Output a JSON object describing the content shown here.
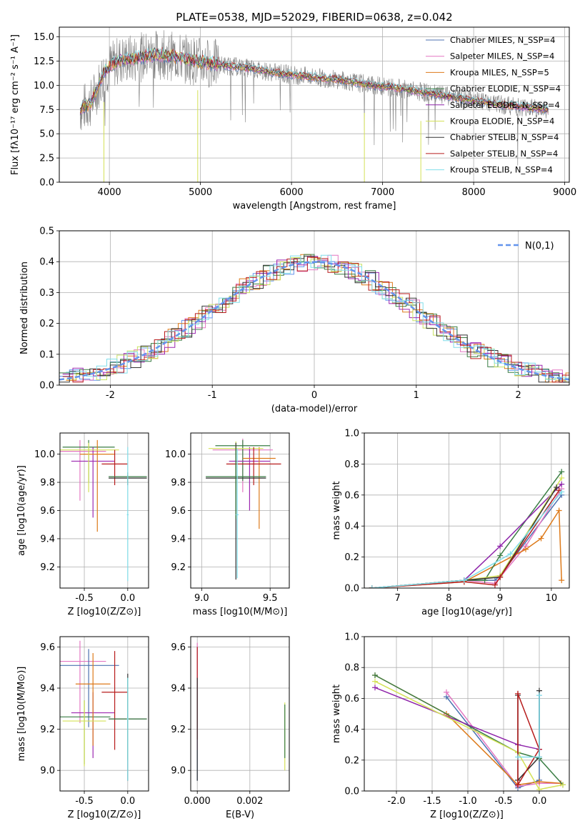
{
  "figure_title": "PLATE=0538, MJD=52029, FIBERID=0638, z=0.042",
  "chart_data": [
    {
      "id": "spectrum",
      "type": "line",
      "title": "PLATE=0538, MJD=52029, FIBERID=0638, z=0.042",
      "xlabel": "wavelength [Angstrom, rest frame]",
      "ylabel": "Flux [fλ10⁻¹⁷ erg cm⁻² s⁻¹ A⁻¹]",
      "xlim": [
        3450,
        9050
      ],
      "ylim": [
        0,
        16
      ],
      "xticks": [
        4000,
        5000,
        6000,
        7000,
        8000,
        9000
      ],
      "yticks": [
        0.0,
        2.5,
        5.0,
        7.5,
        10.0,
        12.5,
        15.0
      ],
      "legend_position": "top-right",
      "observed_continuum": [
        [
          3680,
          7.5
        ],
        [
          3800,
          8.2
        ],
        [
          3950,
          11.5
        ],
        [
          4100,
          12.6
        ],
        [
          4300,
          12.8
        ],
        [
          4500,
          13.2
        ],
        [
          4700,
          13.0
        ],
        [
          4900,
          12.6
        ],
        [
          5100,
          12.3
        ],
        [
          5300,
          12.0
        ],
        [
          5500,
          11.8
        ],
        [
          5700,
          11.5
        ],
        [
          5900,
          11.2
        ],
        [
          6100,
          11.0
        ],
        [
          6300,
          10.8
        ],
        [
          6500,
          10.6
        ],
        [
          6700,
          10.3
        ],
        [
          6900,
          10.0
        ],
        [
          7100,
          9.8
        ],
        [
          7300,
          9.5
        ],
        [
          7500,
          9.2
        ],
        [
          7700,
          8.9
        ],
        [
          7900,
          8.6
        ],
        [
          8100,
          8.3
        ],
        [
          8300,
          8.0
        ],
        [
          8500,
          7.8
        ],
        [
          8700,
          7.6
        ],
        [
          8820,
          7.5
        ]
      ],
      "series": [
        {
          "name": "Chabrier MILES, N_SSP=4",
          "color": "#4c72b0"
        },
        {
          "name": "Salpeter MILES, N_SSP=4",
          "color": "#e377c2"
        },
        {
          "name": "Kroupa MILES, N_SSP=5",
          "color": "#dd7a1a"
        },
        {
          "name": "Chabrier ELODIE, N_SSP=4",
          "color": "#3a7d44"
        },
        {
          "name": "Salpeter ELODIE, N_SSP=4",
          "color": "#8e24aa"
        },
        {
          "name": "Kroupa ELODIE, N_SSP=4",
          "color": "#d4e157"
        },
        {
          "name": "Chabrier STELIB, N_SSP=4",
          "color": "#333333"
        },
        {
          "name": "Salpeter STELIB, N_SSP=4",
          "color": "#b71c1c"
        },
        {
          "name": "Kroupa STELIB, N_SSP=4",
          "color": "#80deea"
        }
      ]
    },
    {
      "id": "residuals",
      "type": "histogram",
      "xlabel": "(data-model)/error",
      "ylabel": "Normed distribution",
      "xlim": [
        -2.5,
        2.5
      ],
      "ylim": [
        0,
        0.5
      ],
      "xticks": [
        -2,
        -1,
        0,
        1,
        2
      ],
      "yticks": [
        0.0,
        0.1,
        0.2,
        0.3,
        0.4,
        0.5
      ],
      "bin_width": 0.1,
      "reference_curve": {
        "name": "N(0,1)",
        "color": "#6495ed"
      },
      "legend_position": "top-right",
      "series_colors": [
        "#6495ed",
        "#e377c2",
        "#dd7a1a",
        "#3a7d44",
        "#9c27b0",
        "#c9e265",
        "#333333",
        "#b71c1c",
        "#80deea"
      ]
    },
    {
      "id": "age_vs_Z",
      "type": "errorbar",
      "xlabel": "Z [log10(Z/Z⊙)]",
      "ylabel": "age  [log10(age/yr)]",
      "xlim": [
        -0.78,
        0.24
      ],
      "ylim": [
        9.05,
        10.15
      ],
      "xticks": [
        -0.5,
        0.0
      ],
      "yticks": [
        9.2,
        9.4,
        9.6,
        9.8,
        10.0
      ],
      "points": [
        {
          "x": -0.55,
          "xerr": 0.3,
          "y": 10.02,
          "yerr_lo": 0.35,
          "yerr_hi": 0.08,
          "color": "#e377c2"
        },
        {
          "x": -0.45,
          "xerr": 0.3,
          "y": 10.05,
          "yerr_lo": 0.25,
          "yerr_hi": 0.05,
          "color": "#3a7d44"
        },
        {
          "x": -0.4,
          "xerr": 0.25,
          "y": 9.95,
          "yerr_lo": 0.4,
          "yerr_hi": 0.1,
          "color": "#9c27b0"
        },
        {
          "x": -0.35,
          "xerr": 0.2,
          "y": 10.0,
          "yerr_lo": 0.55,
          "yerr_hi": 0.1,
          "color": "#dd7a1a"
        },
        {
          "x": -0.45,
          "xerr": 0.35,
          "y": 10.03,
          "yerr_lo": 0.3,
          "yerr_hi": 0.05,
          "color": "#d4e157"
        },
        {
          "x": -0.15,
          "xerr": 0.15,
          "y": 9.93,
          "yerr_lo": 0.15,
          "yerr_hi": 0.1,
          "color": "#b71c1c"
        },
        {
          "x": 0.0,
          "xerr": 0.22,
          "y": 9.83,
          "yerr_lo": 0.05,
          "yerr_hi": 0.02,
          "color": "#333333"
        },
        {
          "x": 0.0,
          "xerr": 0.22,
          "y": 9.84,
          "yerr_lo": 0.04,
          "yerr_hi": 0.03,
          "color": "#3a7d44"
        },
        {
          "x": 0.0,
          "xerr": 0.01,
          "y": 9.57,
          "yerr_lo": 0.47,
          "yerr_hi": 0.48,
          "color": "#80deea"
        }
      ]
    },
    {
      "id": "age_vs_mass",
      "type": "errorbar",
      "xlabel": "mass [log10(M/M⊙)]",
      "ylabel": "",
      "xlim": [
        8.92,
        9.64
      ],
      "ylim": [
        9.05,
        10.15
      ],
      "xticks": [
        9.0,
        9.5
      ],
      "yticks": [
        9.2,
        9.4,
        9.6,
        9.8,
        10.0
      ],
      "points": [
        {
          "x": 9.3,
          "xerr": 0.22,
          "y": 10.03,
          "yerr_lo": 0.3,
          "yerr_hi": 0.08,
          "color": "#e377c2"
        },
        {
          "x": 9.3,
          "xerr": 0.2,
          "y": 10.06,
          "yerr_lo": 0.25,
          "yerr_hi": 0.04,
          "color": "#3a7d44"
        },
        {
          "x": 9.35,
          "xerr": 0.15,
          "y": 9.95,
          "yerr_lo": 0.35,
          "yerr_hi": 0.1,
          "color": "#9c27b0"
        },
        {
          "x": 9.42,
          "xerr": 0.12,
          "y": 9.97,
          "yerr_lo": 0.5,
          "yerr_hi": 0.08,
          "color": "#dd7a1a"
        },
        {
          "x": 9.25,
          "xerr": 0.2,
          "y": 10.04,
          "yerr_lo": 0.32,
          "yerr_hi": 0.05,
          "color": "#d4e157"
        },
        {
          "x": 9.38,
          "xerr": 0.2,
          "y": 9.93,
          "yerr_lo": 0.15,
          "yerr_hi": 0.12,
          "color": "#b71c1c"
        },
        {
          "x": 9.25,
          "xerr": 0.22,
          "y": 9.83,
          "yerr_lo": 0.72,
          "yerr_hi": 0.25,
          "color": "#333333"
        },
        {
          "x": 9.25,
          "xerr": 0.22,
          "y": 9.84,
          "yerr_lo": 0.3,
          "yerr_hi": 0.2,
          "color": "#3a7d44"
        },
        {
          "x": 9.26,
          "xerr": 0.01,
          "y": 9.57,
          "yerr_lo": 0.45,
          "yerr_hi": 0.47,
          "color": "#80deea"
        }
      ]
    },
    {
      "id": "weight_vs_age",
      "type": "line",
      "xlabel": "age  [log10(age/yr)]",
      "ylabel": "mass weight",
      "xlim": [
        6.35,
        10.35
      ],
      "ylim": [
        0,
        1
      ],
      "xticks": [
        7,
        8,
        9,
        10
      ],
      "yticks": [
        0.0,
        0.2,
        0.4,
        0.6,
        0.8,
        1.0
      ],
      "series": [
        {
          "color": "#4c72b0",
          "points": [
            [
              6.5,
              0.0
            ],
            [
              8.3,
              0.05
            ],
            [
              8.9,
              0.05
            ],
            [
              9.0,
              0.08
            ],
            [
              10.2,
              0.6
            ]
          ]
        },
        {
          "color": "#e377c2",
          "points": [
            [
              6.5,
              0.0
            ],
            [
              8.3,
              0.05
            ],
            [
              8.9,
              0.03
            ],
            [
              9.5,
              0.27
            ],
            [
              10.2,
              0.64
            ]
          ]
        },
        {
          "color": "#dd7a1a",
          "points": [
            [
              6.5,
              0.0
            ],
            [
              8.3,
              0.04
            ],
            [
              9.5,
              0.25
            ],
            [
              9.8,
              0.32
            ],
            [
              10.15,
              0.5
            ],
            [
              10.2,
              0.05
            ]
          ]
        },
        {
          "color": "#3a7d44",
          "points": [
            [
              6.5,
              0.0
            ],
            [
              8.3,
              0.05
            ],
            [
              8.7,
              0.05
            ],
            [
              9.0,
              0.21
            ],
            [
              10.2,
              0.75
            ]
          ]
        },
        {
          "color": "#8e24aa",
          "points": [
            [
              6.5,
              0.0
            ],
            [
              8.3,
              0.05
            ],
            [
              9.0,
              0.27
            ],
            [
              10.2,
              0.67
            ]
          ]
        },
        {
          "color": "#d4e157",
          "points": [
            [
              6.5,
              0.0
            ],
            [
              8.3,
              0.05
            ],
            [
              9.0,
              0.08
            ],
            [
              10.2,
              0.71
            ]
          ]
        },
        {
          "color": "#333333",
          "points": [
            [
              6.5,
              0.0
            ],
            [
              8.3,
              0.05
            ],
            [
              9.0,
              0.07
            ],
            [
              10.1,
              0.65
            ]
          ]
        },
        {
          "color": "#b71c1c",
          "points": [
            [
              6.5,
              0.0
            ],
            [
              8.3,
              0.04
            ],
            [
              8.9,
              0.02
            ],
            [
              9.0,
              0.07
            ],
            [
              10.15,
              0.63
            ]
          ]
        },
        {
          "color": "#80deea",
          "points": [
            [
              6.5,
              0.0
            ],
            [
              8.3,
              0.05
            ],
            [
              9.2,
              0.22
            ],
            [
              10.2,
              0.62
            ]
          ]
        }
      ]
    },
    {
      "id": "mass_vs_Z",
      "type": "errorbar",
      "xlabel": "Z [log10(Z/Z⊙)]",
      "ylabel": "mass [log10(M/M⊙)]",
      "xlim": [
        -0.78,
        0.24
      ],
      "ylim": [
        8.9,
        9.65
      ],
      "xticks": [
        -0.5,
        0.0
      ],
      "yticks": [
        9.0,
        9.2,
        9.4,
        9.6
      ],
      "points": [
        {
          "x": -0.55,
          "xerr": 0.3,
          "y": 9.53,
          "yerr_lo": 0.3,
          "yerr_hi": 0.1,
          "color": "#e377c2"
        },
        {
          "x": -0.45,
          "xerr": 0.35,
          "y": 9.51,
          "yerr_lo": 0.3,
          "yerr_hi": 0.08,
          "color": "#4c72b0"
        },
        {
          "x": -0.5,
          "xerr": 0.3,
          "y": 9.26,
          "yerr_lo": 0.23,
          "yerr_hi": 0.08,
          "color": "#3a7d44"
        },
        {
          "x": -0.4,
          "xerr": 0.25,
          "y": 9.28,
          "yerr_lo": 0.22,
          "yerr_hi": 0.1,
          "color": "#9c27b0"
        },
        {
          "x": -0.4,
          "xerr": 0.2,
          "y": 9.42,
          "yerr_lo": 0.3,
          "yerr_hi": 0.15,
          "color": "#dd7a1a"
        },
        {
          "x": -0.5,
          "xerr": 0.25,
          "y": 9.24,
          "yerr_lo": 0.22,
          "yerr_hi": 0.1,
          "color": "#d4e157"
        },
        {
          "x": -0.15,
          "xerr": 0.15,
          "y": 9.38,
          "yerr_lo": 0.28,
          "yerr_hi": 0.2,
          "color": "#b71c1c"
        },
        {
          "x": 0.0,
          "xerr": 0.22,
          "y": 9.25,
          "yerr_lo": 0.3,
          "yerr_hi": 0.22,
          "color": "#333333"
        },
        {
          "x": 0.0,
          "xerr": 0.22,
          "y": 9.25,
          "yerr_lo": 0.2,
          "yerr_hi": 0.2,
          "color": "#3a7d44"
        },
        {
          "x": 0.0,
          "xerr": 0.01,
          "y": 9.25,
          "yerr_lo": 0.3,
          "yerr_hi": 0.2,
          "color": "#80deea"
        }
      ]
    },
    {
      "id": "mass_vs_ebv",
      "type": "errorbar",
      "xlabel": "E(B-V)",
      "ylabel": "",
      "xlim": [
        -0.00025,
        0.0035
      ],
      "ylim": [
        8.9,
        9.65
      ],
      "xticks": [
        0.0,
        0.002
      ],
      "xtick_labels": [
        "0.000",
        "0.002"
      ],
      "yticks": [
        9.0,
        9.2,
        9.4,
        9.6
      ],
      "points": [
        {
          "x": 0.0,
          "xerr": 0.0,
          "y": 9.4,
          "yerr_lo": 0.45,
          "yerr_hi": 0.2,
          "color": "#4c72b0"
        },
        {
          "x": 0.0,
          "xerr": 0.0,
          "y": 9.5,
          "yerr_lo": 0.4,
          "yerr_hi": 0.12,
          "color": "#e377c2"
        },
        {
          "x": 0.0,
          "xerr": 0.0,
          "y": 9.45,
          "yerr_lo": 0.3,
          "yerr_hi": 0.15,
          "color": "#b71c1c"
        },
        {
          "x": 0.0,
          "xerr": 0.0,
          "y": 9.2,
          "yerr_lo": 0.25,
          "yerr_hi": 0.25,
          "color": "#333333"
        },
        {
          "x": 0.00333,
          "xerr": 0.0,
          "y": 9.15,
          "yerr_lo": 0.15,
          "yerr_hi": 0.18,
          "color": "#d4e157"
        },
        {
          "x": 0.00333,
          "xerr": 0.0,
          "y": 9.18,
          "yerr_lo": 0.12,
          "yerr_hi": 0.14,
          "color": "#3a7d44"
        }
      ]
    },
    {
      "id": "weight_vs_Z",
      "type": "line",
      "xlabel": "Z [log10(Z/Z⊙)]",
      "ylabel": "mass weight",
      "xlim": [
        -2.45,
        0.42
      ],
      "ylim": [
        0,
        1
      ],
      "xticks": [
        -2.0,
        -1.5,
        -1.0,
        -0.5,
        0.0
      ],
      "yticks": [
        0.0,
        0.2,
        0.4,
        0.6,
        0.8,
        1.0
      ],
      "series": [
        {
          "color": "#4c72b0",
          "points": [
            [
              -1.3,
              0.61
            ],
            [
              -0.3,
              0.02
            ],
            [
              0.0,
              0.07
            ],
            [
              0.0,
              0.62
            ]
          ]
        },
        {
          "color": "#e377c2",
          "points": [
            [
              -1.3,
              0.64
            ],
            [
              -0.3,
              0.03
            ],
            [
              0.0,
              0.05
            ],
            [
              0.3,
              0.05
            ]
          ]
        },
        {
          "color": "#dd7a1a",
          "points": [
            [
              -2.3,
              0.75
            ],
            [
              -1.3,
              0.5
            ],
            [
              -0.3,
              0.04
            ],
            [
              0.0,
              0.06
            ],
            [
              0.3,
              0.05
            ]
          ]
        },
        {
          "color": "#3a7d44",
          "points": [
            [
              -2.3,
              0.75
            ],
            [
              -0.3,
              0.25
            ],
            [
              0.0,
              0.21
            ],
            [
              0.33,
              0.04
            ]
          ]
        },
        {
          "color": "#8e24aa",
          "points": [
            [
              -2.3,
              0.67
            ],
            [
              -0.3,
              0.3
            ],
            [
              0.0,
              0.27
            ],
            [
              0.0,
              0.27
            ]
          ]
        },
        {
          "color": "#d4e157",
          "points": [
            [
              -2.3,
              0.71
            ],
            [
              -0.3,
              0.25
            ],
            [
              0.0,
              0.01
            ],
            [
              0.33,
              0.04
            ]
          ]
        },
        {
          "color": "#333333",
          "points": [
            [
              -0.3,
              0.62
            ],
            [
              -0.3,
              0.07
            ],
            [
              0.0,
              0.22
            ],
            [
              0.0,
              0.65
            ]
          ]
        },
        {
          "color": "#b71c1c",
          "points": [
            [
              -0.3,
              0.63
            ],
            [
              -0.3,
              0.04
            ],
            [
              0.0,
              0.27
            ],
            [
              -0.3,
              0.63
            ]
          ]
        },
        {
          "color": "#80deea",
          "points": [
            [
              -0.3,
              0.22
            ],
            [
              0.0,
              0.22
            ],
            [
              0.0,
              0.62
            ]
          ]
        }
      ]
    }
  ]
}
